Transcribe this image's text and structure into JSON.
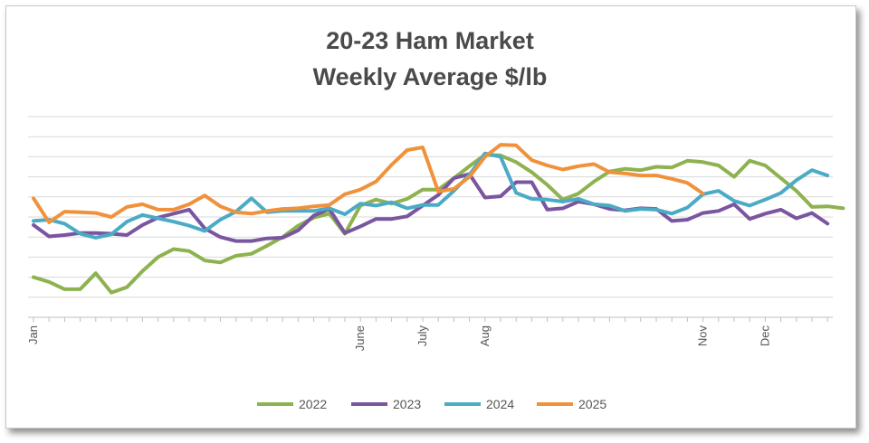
{
  "chart_data": {
    "type": "line",
    "title": "20-23 Ham Market",
    "subtitle": "Weekly Average $/lb",
    "xlabel": "",
    "ylabel": "",
    "grid": true,
    "legend_position": "bottom",
    "x_tick_labels": [
      {
        "label": "Jan",
        "week": 1
      },
      {
        "label": "June",
        "week": 22
      },
      {
        "label": "July",
        "week": 26
      },
      {
        "label": "Aug",
        "week": 30
      },
      {
        "label": "Nov",
        "week": 44
      },
      {
        "label": "Dec",
        "week": 48
      }
    ],
    "series": [
      {
        "name": "2022",
        "color": "#8db24f",
        "values": [
          1.1,
          1.03,
          0.92,
          0.92,
          1.16,
          0.87,
          0.95,
          1.19,
          1.4,
          1.52,
          1.49,
          1.35,
          1.32,
          1.42,
          1.45,
          1.57,
          1.7,
          1.87,
          1.99,
          2.05,
          1.75,
          2.17,
          2.26,
          2.2,
          2.27,
          2.41,
          2.41,
          2.58,
          2.76,
          2.93,
          2.92,
          2.82,
          2.67,
          2.48,
          2.26,
          2.35,
          2.53,
          2.68,
          2.72,
          2.7,
          2.75,
          2.74,
          2.84,
          2.82,
          2.77,
          2.6,
          2.84,
          2.77,
          2.58,
          2.39,
          2.15,
          2.16,
          2.13
        ]
      },
      {
        "name": "2023",
        "color": "#7a55a0",
        "values": [
          1.88,
          1.71,
          1.73,
          1.76,
          1.76,
          1.75,
          1.73,
          1.88,
          1.99,
          2.05,
          2.11,
          1.83,
          1.7,
          1.64,
          1.64,
          1.68,
          1.69,
          1.8,
          2.02,
          2.12,
          1.76,
          1.86,
          1.97,
          1.97,
          2.01,
          2.17,
          2.33,
          2.58,
          2.64,
          2.29,
          2.31,
          2.52,
          2.52,
          2.11,
          2.13,
          2.23,
          2.19,
          2.12,
          2.1,
          2.13,
          2.12,
          1.94,
          1.96,
          2.06,
          2.09,
          2.19,
          1.97,
          2.05,
          2.11,
          1.98,
          2.06,
          1.9
        ]
      },
      {
        "name": "2024",
        "color": "#4babc6",
        "values": [
          1.94,
          1.96,
          1.9,
          1.75,
          1.69,
          1.74,
          1.93,
          2.03,
          1.98,
          1.93,
          1.87,
          1.79,
          1.96,
          2.08,
          2.28,
          2.07,
          2.09,
          2.09,
          2.09,
          2.13,
          2.04,
          2.2,
          2.17,
          2.22,
          2.13,
          2.18,
          2.18,
          2.39,
          2.63,
          2.95,
          2.9,
          2.36,
          2.27,
          2.26,
          2.23,
          2.27,
          2.19,
          2.17,
          2.09,
          2.12,
          2.11,
          2.05,
          2.14,
          2.34,
          2.39,
          2.24,
          2.17,
          2.26,
          2.36,
          2.55,
          2.7,
          2.62
        ]
      },
      {
        "name": "2025",
        "color": "#f0923b",
        "values": [
          2.28,
          1.92,
          2.08,
          2.07,
          2.06,
          2.0,
          2.15,
          2.19,
          2.11,
          2.11,
          2.19,
          2.32,
          2.16,
          2.07,
          2.05,
          2.09,
          2.12,
          2.13,
          2.16,
          2.18,
          2.34,
          2.41,
          2.53,
          2.78,
          3.0,
          3.04,
          2.38,
          2.42,
          2.6,
          2.9,
          3.08,
          3.07,
          2.85,
          2.77,
          2.71,
          2.76,
          2.79,
          2.67,
          2.65,
          2.62,
          2.62,
          2.57,
          2.51,
          2.35
        ]
      }
    ]
  }
}
